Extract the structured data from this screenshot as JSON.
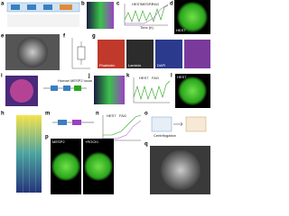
{
  "panels": {
    "a": "a",
    "b": "b",
    "c": "c",
    "d": "d",
    "e": "e",
    "f": "f",
    "g": "g",
    "h": "h",
    "i": "i",
    "j": "j",
    "k": "k",
    "l": "l",
    "m": "m",
    "n": "n",
    "o": "o",
    "p": "p",
    "q": "q"
  },
  "panel_c": {
    "legend": [
      "HES7",
      "MESP2",
      "FAG"
    ],
    "x_label": "Time (h)"
  },
  "panel_d": {
    "label": "HES7"
  },
  "panel_g": {
    "labels": [
      "Phalloidin",
      "Laminin",
      "DAPI"
    ]
  },
  "panel_k": {
    "legend": [
      "HES7",
      "FAG"
    ]
  },
  "panel_l": {
    "label": "HES7"
  },
  "panel_m": {
    "label": "Human MESP2 locus"
  },
  "panel_n": {
    "legend": [
      "HES7",
      "FAG"
    ]
  },
  "panel_o": {
    "label": "Centrifugation"
  },
  "panel_p": {
    "labels": [
      "MESP2",
      "+ROCKi"
    ]
  }
}
